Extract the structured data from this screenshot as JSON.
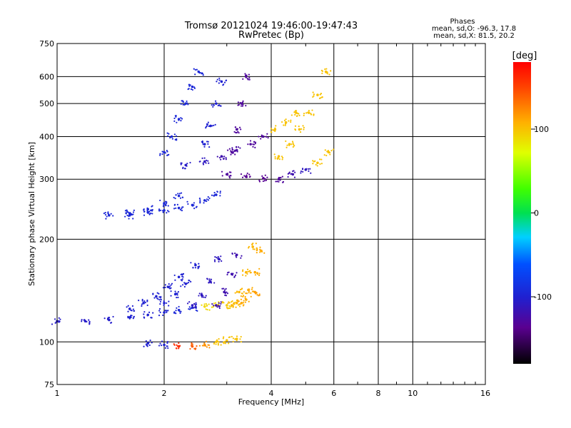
{
  "header": {
    "title": "Tromsø 20121024 19:46:00-19:47:43",
    "subtitle": "RwPretec (Bp)"
  },
  "stats": {
    "heading": "Phases",
    "line_o": "mean, sd,O: -96.3, 17.8",
    "line_x": "mean, sd,X: 81.5, 20.2"
  },
  "colorbar": {
    "unit_label": "[deg]",
    "ticks": [
      {
        "value": 100,
        "label": "100"
      },
      {
        "value": 0,
        "label": "0"
      },
      {
        "value": -100,
        "label": "-100"
      }
    ],
    "range": [
      -180,
      180
    ]
  },
  "chart_data": {
    "type": "scatter",
    "xlabel": "Frequency [MHz]",
    "ylabel": "Stationary phase Virtual Height [km]",
    "x_scale": "log",
    "y_scale": "log",
    "xlim": [
      1,
      16
    ],
    "ylim": [
      75,
      750
    ],
    "grid": true,
    "xticks": [
      {
        "value": 1,
        "label": "1"
      },
      {
        "value": 2,
        "label": "2"
      },
      {
        "value": 4,
        "label": "4"
      },
      {
        "value": 6,
        "label": "6"
      },
      {
        "value": 8,
        "label": "8"
      },
      {
        "value": 10,
        "label": "10"
      },
      {
        "value": 16,
        "label": "16"
      }
    ],
    "yticks": [
      {
        "value": 75,
        "label": "75"
      },
      {
        "value": 100,
        "label": "100"
      },
      {
        "value": 200,
        "label": "200"
      },
      {
        "value": 300,
        "label": "300"
      },
      {
        "value": 400,
        "label": "400"
      },
      {
        "value": 500,
        "label": "500"
      },
      {
        "value": 600,
        "label": "600"
      },
      {
        "value": 750,
        "label": "750"
      }
    ],
    "color_axis": "phase [deg]",
    "traces": [
      {
        "x": [
          1.0,
          1.2,
          1.4,
          1.6,
          1.8,
          2.0,
          2.2,
          2.4,
          2.6,
          2.8,
          3.0,
          3.2,
          3.4,
          3.6
        ],
        "y": [
          115,
          115,
          116,
          118,
          120,
          122,
          124,
          126,
          127,
          128,
          128,
          130,
          133,
          140
        ],
        "phase": [
          -105,
          -105,
          -103,
          -100,
          -100,
          -98,
          -95,
          -92,
          90,
          90,
          95,
          100,
          110,
          115
        ]
      },
      {
        "x": [
          1.6,
          1.75,
          1.9,
          2.05,
          2.2
        ],
        "y": [
          125,
          130,
          136,
          145,
          155
        ],
        "phase": [
          -100,
          -100,
          -100,
          -100,
          -100
        ]
      },
      {
        "x": [
          2.0,
          2.15,
          2.3,
          2.45
        ],
        "y": [
          130,
          138,
          148,
          168
        ],
        "phase": [
          -100,
          -100,
          -100,
          -100
        ]
      },
      {
        "x": [
          2.4,
          2.55,
          2.7,
          2.85
        ],
        "y": [
          128,
          137,
          150,
          175
        ],
        "phase": [
          -110,
          -110,
          -110,
          -110
        ]
      },
      {
        "x": [
          2.8,
          2.95,
          3.1,
          3.2
        ],
        "y": [
          128,
          140,
          158,
          180
        ],
        "phase": [
          -120,
          -120,
          -120,
          -120
        ]
      },
      {
        "x": [
          3.1,
          3.25,
          3.4,
          3.55
        ],
        "y": [
          128,
          140,
          160,
          190
        ],
        "phase": [
          105,
          105,
          105,
          105
        ]
      },
      {
        "x": [
          3.3,
          3.45,
          3.6,
          3.75
        ],
        "y": [
          130,
          142,
          160,
          185
        ],
        "phase": [
          110,
          110,
          110,
          110
        ]
      },
      {
        "x": [
          1.4,
          1.6,
          1.8,
          2.0,
          2.2,
          2.4,
          2.6,
          2.8
        ],
        "y": [
          235,
          238,
          240,
          243,
          247,
          252,
          260,
          270
        ],
        "phase": [
          -95,
          -95,
          -95,
          -95,
          -95,
          -95,
          -95,
          -95
        ]
      },
      {
        "x": [
          1.6,
          1.8,
          2.0,
          2.2
        ],
        "y": [
          235,
          245,
          255,
          268
        ],
        "phase": [
          -95,
          -95,
          -95,
          -95
        ]
      },
      {
        "x": [
          2.3,
          2.6,
          2.9,
          3.2,
          3.5,
          3.8,
          4.1,
          4.4,
          4.7
        ],
        "y": [
          330,
          338,
          350,
          365,
          380,
          400,
          420,
          440,
          470
        ],
        "phase": [
          -105,
          -110,
          -120,
          -125,
          -130,
          -130,
          100,
          100,
          100
        ]
      },
      {
        "x": [
          3.0,
          3.4,
          3.8,
          4.2,
          4.6,
          5.0,
          5.4,
          5.8
        ],
        "y": [
          310,
          305,
          302,
          300,
          310,
          320,
          335,
          360
        ],
        "phase": [
          -130,
          -135,
          -135,
          -130,
          -120,
          -110,
          100,
          100
        ]
      },
      {
        "x": [
          2.0,
          2.1,
          2.2,
          2.3,
          2.4,
          2.5
        ],
        "y": [
          360,
          400,
          450,
          500,
          560,
          620
        ],
        "phase": [
          -95,
          -95,
          -95,
          -95,
          -95,
          -95
        ]
      },
      {
        "x": [
          2.6,
          2.7,
          2.8,
          2.9
        ],
        "y": [
          380,
          430,
          500,
          580
        ],
        "phase": [
          -100,
          -100,
          -100,
          -100
        ]
      },
      {
        "x": [
          3.1,
          3.2,
          3.3,
          3.4
        ],
        "y": [
          360,
          420,
          500,
          600
        ],
        "phase": [
          -130,
          -130,
          -130,
          -130
        ]
      },
      {
        "x": [
          4.2,
          4.5,
          4.8,
          5.1,
          5.4,
          5.7
        ],
        "y": [
          350,
          380,
          420,
          470,
          530,
          620
        ],
        "phase": [
          100,
          100,
          100,
          100,
          100,
          100
        ]
      },
      {
        "x": [
          1.8,
          2.0,
          2.2,
          2.4,
          2.6,
          2.8,
          3.0,
          3.2
        ],
        "y": [
          99,
          98,
          97,
          97,
          98,
          100,
          101,
          102
        ],
        "phase": [
          -100,
          -100,
          160,
          140,
          120,
          100,
          100,
          100
        ]
      }
    ]
  }
}
